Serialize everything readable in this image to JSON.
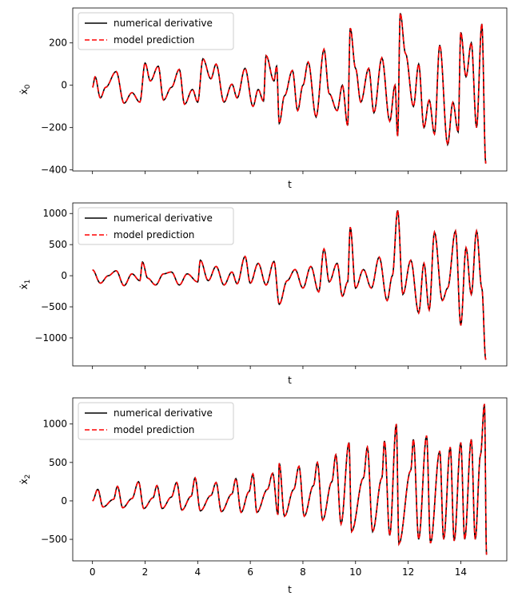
{
  "chart_data": [
    {
      "type": "line",
      "xlabel": "t",
      "ylabel": "ẋ",
      "ylabel_sub": "0",
      "xlim": [
        -0.75,
        15.75
      ],
      "ylim": [
        -405,
        365
      ],
      "yticks": [
        -400,
        -200,
        0,
        200
      ],
      "ytick_labels": [
        "−400",
        "−200",
        "0",
        "200"
      ],
      "xticks": [
        0,
        2,
        4,
        6,
        8,
        10,
        12,
        14
      ],
      "show_xtick_labels": false,
      "legend": {
        "placement": "top-left",
        "entries": [
          {
            "label": "numerical derivative",
            "color": "#000000",
            "style": "solid"
          },
          {
            "label": "model prediction",
            "color": "#ff0000",
            "style": "dashed"
          }
        ]
      },
      "series": [
        {
          "name": "numerical derivative",
          "color": "#000000",
          "style": "solid"
        },
        {
          "name": "model prediction",
          "color": "#ff0000",
          "style": "dashed"
        }
      ],
      "points": [
        [
          0,
          -10
        ],
        [
          0.1,
          40
        ],
        [
          0.3,
          -60
        ],
        [
          0.5,
          -10
        ],
        [
          0.9,
          65
        ],
        [
          1.2,
          -85
        ],
        [
          1.5,
          -35
        ],
        [
          1.8,
          -80
        ],
        [
          2.0,
          105
        ],
        [
          2.2,
          20
        ],
        [
          2.5,
          90
        ],
        [
          2.7,
          -70
        ],
        [
          3.0,
          -10
        ],
        [
          3.3,
          75
        ],
        [
          3.5,
          -90
        ],
        [
          3.8,
          -20
        ],
        [
          4.0,
          -80
        ],
        [
          4.2,
          125
        ],
        [
          4.5,
          30
        ],
        [
          4.7,
          100
        ],
        [
          5.0,
          -80
        ],
        [
          5.3,
          5
        ],
        [
          5.5,
          -60
        ],
        [
          5.8,
          80
        ],
        [
          6.1,
          -100
        ],
        [
          6.3,
          -20
        ],
        [
          6.5,
          -75
        ],
        [
          6.6,
          140
        ],
        [
          6.9,
          20
        ],
        [
          7.0,
          90
        ],
        [
          7.1,
          -180
        ],
        [
          7.3,
          -50
        ],
        [
          7.6,
          70
        ],
        [
          7.8,
          -120
        ],
        [
          8.0,
          0
        ],
        [
          8.2,
          110
        ],
        [
          8.5,
          -150
        ],
        [
          8.8,
          170
        ],
        [
          9.0,
          -40
        ],
        [
          9.3,
          -120
        ],
        [
          9.5,
          0
        ],
        [
          9.7,
          -190
        ],
        [
          9.8,
          270
        ],
        [
          10.0,
          80
        ],
        [
          10.2,
          -80
        ],
        [
          10.5,
          80
        ],
        [
          10.7,
          -130
        ],
        [
          11.0,
          130
        ],
        [
          11.3,
          -170
        ],
        [
          11.5,
          0
        ],
        [
          11.6,
          -240
        ],
        [
          11.7,
          340
        ],
        [
          11.9,
          150
        ],
        [
          12.2,
          -100
        ],
        [
          12.4,
          100
        ],
        [
          12.6,
          -200
        ],
        [
          12.8,
          -70
        ],
        [
          13.0,
          -230
        ],
        [
          13.2,
          190
        ],
        [
          13.5,
          -280
        ],
        [
          13.7,
          -80
        ],
        [
          13.9,
          -220
        ],
        [
          14.0,
          250
        ],
        [
          14.2,
          40
        ],
        [
          14.4,
          200
        ],
        [
          14.6,
          -200
        ],
        [
          14.8,
          290
        ],
        [
          14.95,
          -370
        ]
      ]
    },
    {
      "type": "line",
      "xlabel": "t",
      "ylabel": "ẋ",
      "ylabel_sub": "1",
      "xlim": [
        -0.75,
        15.75
      ],
      "ylim": [
        -1450,
        1170
      ],
      "yticks": [
        -1000,
        -500,
        0,
        500,
        1000
      ],
      "ytick_labels": [
        "−1000",
        "−500",
        "0",
        "500",
        "1000"
      ],
      "xticks": [
        0,
        2,
        4,
        6,
        8,
        10,
        12,
        14
      ],
      "show_xtick_labels": false,
      "legend": {
        "placement": "top-left",
        "entries": [
          {
            "label": "numerical derivative",
            "color": "#000000",
            "style": "solid"
          },
          {
            "label": "model prediction",
            "color": "#ff0000",
            "style": "dashed"
          }
        ]
      },
      "series": [
        {
          "name": "numerical derivative",
          "color": "#000000",
          "style": "solid"
        },
        {
          "name": "model prediction",
          "color": "#ff0000",
          "style": "dashed"
        }
      ],
      "points": [
        [
          0,
          95
        ],
        [
          0.3,
          -120
        ],
        [
          0.6,
          0
        ],
        [
          0.9,
          80
        ],
        [
          1.2,
          -160
        ],
        [
          1.5,
          30
        ],
        [
          1.8,
          -80
        ],
        [
          1.9,
          220
        ],
        [
          2.1,
          -40
        ],
        [
          2.4,
          -150
        ],
        [
          2.7,
          30
        ],
        [
          3.0,
          60
        ],
        [
          3.3,
          -150
        ],
        [
          3.6,
          30
        ],
        [
          4.0,
          -100
        ],
        [
          4.1,
          250
        ],
        [
          4.4,
          -80
        ],
        [
          4.7,
          150
        ],
        [
          5.0,
          -150
        ],
        [
          5.3,
          60
        ],
        [
          5.5,
          -130
        ],
        [
          5.8,
          310
        ],
        [
          6.0,
          -120
        ],
        [
          6.3,
          200
        ],
        [
          6.6,
          -150
        ],
        [
          6.9,
          230
        ],
        [
          7.1,
          -460
        ],
        [
          7.4,
          -80
        ],
        [
          7.7,
          100
        ],
        [
          8.0,
          -200
        ],
        [
          8.3,
          150
        ],
        [
          8.6,
          -260
        ],
        [
          8.8,
          430
        ],
        [
          9.0,
          -100
        ],
        [
          9.3,
          200
        ],
        [
          9.5,
          -330
        ],
        [
          9.7,
          -100
        ],
        [
          9.8,
          780
        ],
        [
          10.0,
          -200
        ],
        [
          10.3,
          100
        ],
        [
          10.6,
          -200
        ],
        [
          10.9,
          300
        ],
        [
          11.2,
          -400
        ],
        [
          11.4,
          0
        ],
        [
          11.6,
          1050
        ],
        [
          11.8,
          -300
        ],
        [
          12.1,
          250
        ],
        [
          12.4,
          -600
        ],
        [
          12.6,
          200
        ],
        [
          12.8,
          -550
        ],
        [
          13.0,
          700
        ],
        [
          13.3,
          -400
        ],
        [
          13.5,
          -200
        ],
        [
          13.8,
          720
        ],
        [
          14.0,
          -800
        ],
        [
          14.2,
          450
        ],
        [
          14.4,
          -300
        ],
        [
          14.6,
          720
        ],
        [
          14.8,
          -200
        ],
        [
          14.95,
          -1350
        ]
      ]
    },
    {
      "type": "line",
      "xlabel": "t",
      "ylabel": "ẋ",
      "ylabel_sub": "2",
      "xlim": [
        -0.75,
        15.75
      ],
      "ylim": [
        -780,
        1340
      ],
      "yticks": [
        -500,
        0,
        500,
        1000
      ],
      "ytick_labels": [
        "−500",
        "0",
        "500",
        "1000"
      ],
      "xticks": [
        0,
        2,
        4,
        6,
        8,
        10,
        12,
        14
      ],
      "xtick_labels": [
        "0",
        "2",
        "4",
        "6",
        "8",
        "10",
        "12",
        "14"
      ],
      "show_xtick_labels": true,
      "legend": {
        "placement": "top-left",
        "entries": [
          {
            "label": "numerical derivative",
            "color": "#000000",
            "style": "solid"
          },
          {
            "label": "model prediction",
            "color": "#ff0000",
            "style": "dashed"
          }
        ]
      },
      "series": [
        {
          "name": "numerical derivative",
          "color": "#000000",
          "style": "solid"
        },
        {
          "name": "model prediction",
          "color": "#ff0000",
          "style": "dashed"
        }
      ],
      "points": [
        [
          0,
          0
        ],
        [
          0.2,
          150
        ],
        [
          0.4,
          -80
        ],
        [
          0.8,
          20
        ],
        [
          0.95,
          190
        ],
        [
          1.15,
          -90
        ],
        [
          1.5,
          30
        ],
        [
          1.75,
          250
        ],
        [
          1.95,
          -100
        ],
        [
          2.3,
          40
        ],
        [
          2.45,
          200
        ],
        [
          2.65,
          -100
        ],
        [
          3.0,
          50
        ],
        [
          3.2,
          240
        ],
        [
          3.4,
          -120
        ],
        [
          3.75,
          60
        ],
        [
          3.9,
          300
        ],
        [
          4.1,
          -130
        ],
        [
          4.5,
          70
        ],
        [
          4.7,
          240
        ],
        [
          4.9,
          -140
        ],
        [
          5.3,
          90
        ],
        [
          5.45,
          290
        ],
        [
          5.65,
          -150
        ],
        [
          5.95,
          120
        ],
        [
          6.1,
          350
        ],
        [
          6.25,
          -150
        ],
        [
          6.65,
          150
        ],
        [
          6.85,
          360
        ],
        [
          7.05,
          -180
        ],
        [
          7.1,
          490
        ],
        [
          7.3,
          -200
        ],
        [
          7.65,
          150
        ],
        [
          7.85,
          450
        ],
        [
          8.05,
          -200
        ],
        [
          8.4,
          200
        ],
        [
          8.55,
          500
        ],
        [
          8.75,
          -250
        ],
        [
          9.1,
          250
        ],
        [
          9.25,
          600
        ],
        [
          9.45,
          -300
        ],
        [
          9.75,
          760
        ],
        [
          9.85,
          -400
        ],
        [
          10.3,
          300
        ],
        [
          10.45,
          700
        ],
        [
          10.65,
          -400
        ],
        [
          11.0,
          300
        ],
        [
          11.1,
          780
        ],
        [
          11.3,
          -450
        ],
        [
          11.55,
          1000
        ],
        [
          11.65,
          -560
        ],
        [
          12.1,
          400
        ],
        [
          12.2,
          800
        ],
        [
          12.4,
          -500
        ],
        [
          12.7,
          850
        ],
        [
          12.85,
          -550
        ],
        [
          13.2,
          650
        ],
        [
          13.35,
          -500
        ],
        [
          13.6,
          700
        ],
        [
          13.75,
          -520
        ],
        [
          14.0,
          760
        ],
        [
          14.15,
          -500
        ],
        [
          14.4,
          800
        ],
        [
          14.55,
          -500
        ],
        [
          14.75,
          600
        ],
        [
          14.9,
          1260
        ],
        [
          14.98,
          -700
        ]
      ]
    }
  ]
}
